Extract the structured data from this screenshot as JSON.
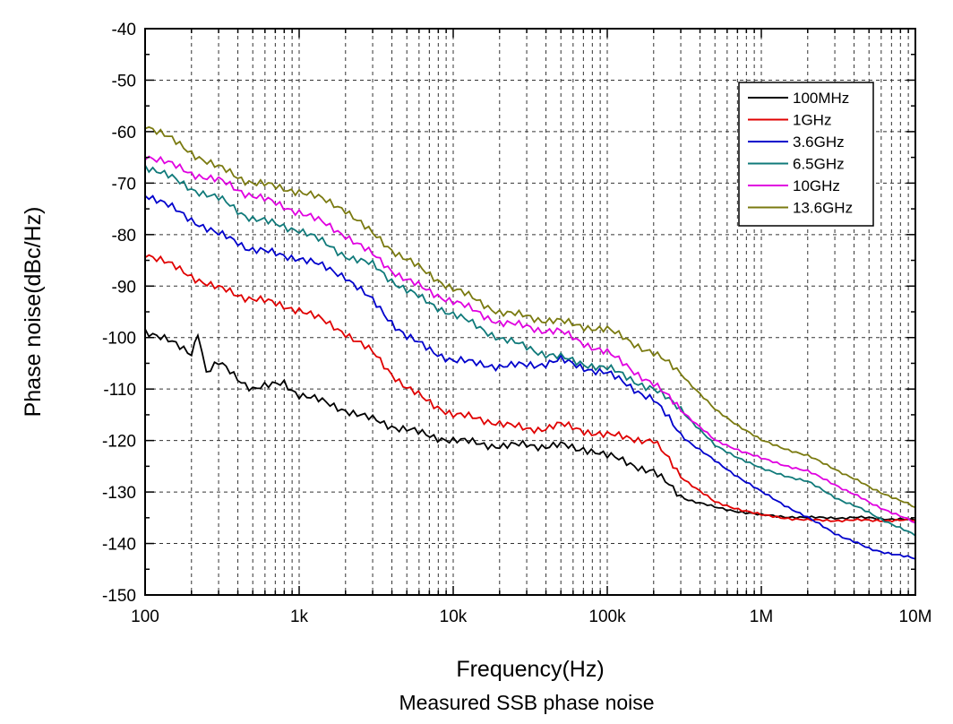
{
  "chart_data": {
    "type": "line",
    "title": "",
    "caption": "Measured SSB phase noise",
    "xlabel": "Frequency(Hz)",
    "ylabel": "Phase noise(dBc/Hz)",
    "xscale": "log",
    "xlim": [
      100,
      10000000
    ],
    "ylim": [
      -150,
      -40
    ],
    "xticks": [
      100,
      1000,
      10000,
      100000,
      1000000,
      10000000
    ],
    "xtick_labels": [
      "100",
      "1k",
      "10k",
      "100k",
      "1M",
      "10M"
    ],
    "yticks": [
      -40,
      -50,
      -60,
      -70,
      -80,
      -90,
      -100,
      -110,
      -120,
      -130,
      -140,
      -150
    ],
    "ytick_labels": [
      "-40",
      "-50",
      "-60",
      "-70",
      "-80",
      "-90",
      "-100",
      "-110",
      "-120",
      "-130",
      "-140",
      "-150"
    ],
    "grid": true,
    "legend_position": "top-right",
    "series": [
      {
        "name": "100MHz",
        "color": "#000000",
        "x": [
          100,
          200,
          220,
          250,
          300,
          500,
          800,
          1000,
          2000,
          3000,
          5000,
          10000,
          20000,
          30000,
          50000,
          70000,
          100000,
          200000,
          300000,
          500000,
          1000000,
          2000000,
          3000000,
          5000000,
          10000000
        ],
        "y": [
          -98.5,
          -103,
          -99.5,
          -107,
          -105,
          -110,
          -109,
          -111,
          -114,
          -116,
          -118,
          -120,
          -121,
          -121,
          -121,
          -121.5,
          -123,
          -126,
          -131,
          -133,
          -134.5,
          -135,
          -135,
          -135,
          -135.5
        ]
      },
      {
        "name": "1GHz",
        "color": "#e00000",
        "x": [
          100,
          200,
          300,
          500,
          1000,
          2000,
          3000,
          5000,
          10000,
          20000,
          30000,
          50000,
          100000,
          200000,
          300000,
          500000,
          1000000,
          2000000,
          5000000,
          10000000
        ],
        "y": [
          -83.5,
          -88,
          -90.5,
          -92.5,
          -94.5,
          -99,
          -103,
          -110,
          -115,
          -116.5,
          -118,
          -117,
          -119,
          -120,
          -127,
          -132,
          -134.5,
          -135.5,
          -135.5,
          -135.5
        ]
      },
      {
        "name": "3.6GHz",
        "color": "#0000cc",
        "x": [
          100,
          200,
          300,
          400,
          500,
          1000,
          2000,
          3000,
          5000,
          10000,
          20000,
          30000,
          50000,
          100000,
          200000,
          300000,
          500000,
          1000000,
          2000000,
          3000000,
          5000000,
          10000000
        ],
        "y": [
          -72,
          -77,
          -80,
          -81.5,
          -83,
          -84.5,
          -88,
          -93,
          -100,
          -104.5,
          -105.5,
          -105.5,
          -104.5,
          -107,
          -112,
          -119,
          -124,
          -130,
          -135,
          -138,
          -141,
          -143
        ]
      },
      {
        "name": "6.5GHz",
        "color": "#107a7a",
        "x": [
          100,
          200,
          300,
          500,
          1000,
          2000,
          3000,
          5000,
          10000,
          20000,
          30000,
          50000,
          100000,
          200000,
          300000,
          500000,
          1000000,
          2000000,
          3000000,
          5000000,
          10000000
        ],
        "y": [
          -66.5,
          -71,
          -73,
          -77,
          -79,
          -84,
          -86,
          -91,
          -95.5,
          -100,
          -102,
          -104,
          -106,
          -110,
          -114,
          -121,
          -125.5,
          -128,
          -131,
          -134,
          -138.5
        ]
      },
      {
        "name": "10GHz",
        "color": "#e000e0",
        "x": [
          100,
          200,
          300,
          500,
          1000,
          2000,
          3000,
          5000,
          10000,
          20000,
          30000,
          50000,
          100000,
          200000,
          300000,
          500000,
          1000000,
          2000000,
          3000000,
          5000000,
          10000000
        ],
        "y": [
          -64.5,
          -68,
          -69.5,
          -72.5,
          -75.5,
          -80,
          -84,
          -89,
          -93,
          -97,
          -98,
          -99,
          -103,
          -109,
          -114,
          -120,
          -123.5,
          -126,
          -128.5,
          -132,
          -136
        ]
      },
      {
        "name": "13.6GHz",
        "color": "#7a7a10",
        "x": [
          100,
          200,
          300,
          500,
          1000,
          2000,
          3000,
          5000,
          10000,
          20000,
          30000,
          50000,
          100000,
          200000,
          300000,
          500000,
          1000000,
          2000000,
          3000000,
          5000000,
          10000000
        ],
        "y": [
          -58.5,
          -64,
          -67,
          -70,
          -71.5,
          -75,
          -80,
          -85,
          -90.5,
          -95,
          -96,
          -97,
          -98.5,
          -103,
          -107,
          -114,
          -120,
          -123,
          -125.5,
          -129,
          -133
        ]
      }
    ]
  }
}
